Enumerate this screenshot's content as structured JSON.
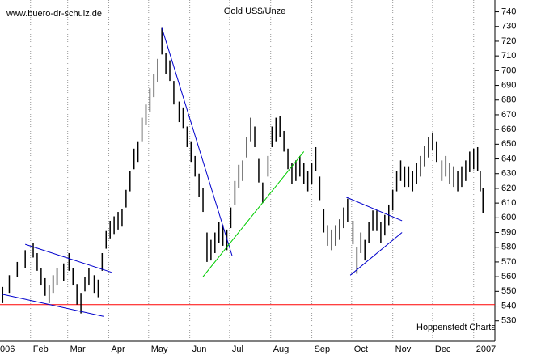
{
  "chart_data": {
    "type": "hilo",
    "title": "Gold US$/Unze",
    "watermark": "www.buero-dr-schulz.de",
    "source": "Hoppenstedt Charts",
    "color": "#000000",
    "series": [
      {
        "x": [
          11,
          16,
          22,
          28,
          34,
          37,
          40,
          43,
          46,
          49,
          52,
          57,
          61,
          64,
          67,
          70,
          73,
          76,
          80,
          83,
          86,
          89,
          92,
          95,
          98,
          101,
          104,
          107,
          110,
          113,
          116,
          119,
          122,
          125,
          128,
          131,
          134,
          137,
          140,
          144,
          147,
          150,
          153,
          156,
          159,
          162,
          165,
          168,
          171,
          174,
          177,
          180,
          183,
          186,
          189,
          192,
          195,
          198,
          201,
          204,
          207,
          211,
          214,
          217,
          220,
          223,
          226,
          229,
          232,
          235,
          238,
          241,
          244,
          247,
          250,
          253,
          256,
          259,
          262,
          265,
          268,
          271,
          275,
          278,
          281,
          284,
          287,
          290,
          293,
          296,
          299,
          302,
          305,
          308,
          311,
          314,
          317,
          320,
          323,
          326,
          329,
          332,
          335,
          338,
          342,
          345,
          348,
          351,
          354,
          357,
          360,
          363,
          366,
          369,
          371,
          373
        ],
        "high": [
          553,
          561,
          570,
          578,
          583,
          576,
          566,
          559,
          554,
          561,
          566,
          569,
          576,
          566,
          555,
          549,
          560,
          566,
          561,
          558,
          576,
          591,
          598,
          601,
          604,
          606,
          619,
          632,
          647,
          652,
          668,
          677,
          688,
          698,
          708,
          729,
          712,
          707,
          693,
          679,
          675,
          662,
          652,
          642,
          630,
          620,
          590,
          585,
          590,
          597,
          595,
          592,
          607,
          625,
          636,
          639,
          655,
          668,
          662,
          640,
          624,
          642,
          662,
          668,
          669,
          659,
          647,
          637,
          639,
          642,
          637,
          632,
          637,
          648,
          628,
          606,
          595,
          592,
          595,
          599,
          607,
          613,
          598,
          580,
          590,
          585,
          597,
          605,
          605,
          597,
          602,
          609,
          619,
          632,
          639,
          635,
          635,
          632,
          637,
          642,
          649,
          655,
          658,
          652,
          639,
          642,
          637,
          635,
          632,
          635,
          639,
          645,
          647,
          648,
          632,
          620
        ],
        "low": [
          542,
          549,
          560,
          566,
          573,
          564,
          554,
          547,
          542,
          549,
          554,
          557,
          564,
          554,
          541,
          535,
          550,
          554,
          549,
          546,
          564,
          579,
          586,
          589,
          592,
          594,
          607,
          618,
          633,
          638,
          652,
          663,
          672,
          682,
          692,
          711,
          698,
          693,
          677,
          665,
          661,
          648,
          638,
          628,
          614,
          604,
          570,
          571,
          576,
          583,
          581,
          578,
          593,
          609,
          620,
          625,
          641,
          652,
          648,
          624,
          610,
          628,
          648,
          652,
          655,
          645,
          633,
          623,
          625,
          628,
          623,
          618,
          623,
          632,
          612,
          590,
          581,
          578,
          581,
          585,
          593,
          597,
          582,
          562,
          576,
          571,
          583,
          591,
          591,
          583,
          588,
          595,
          605,
          618,
          625,
          621,
          621,
          618,
          623,
          628,
          635,
          641,
          646,
          638,
          625,
          628,
          623,
          621,
          618,
          621,
          625,
          631,
          633,
          632,
          618,
          603
        ]
      }
    ],
    "trendlines": [
      {
        "color": "#0000cc",
        "x": [
          28,
          93
        ],
        "y": [
          582,
          563
        ]
      },
      {
        "color": "#0000cc",
        "x": [
          11,
          87
        ],
        "y": [
          548,
          533
        ]
      },
      {
        "color": "#0000cc",
        "x": [
          131,
          184
        ],
        "y": [
          729,
          574
        ]
      },
      {
        "color": "#00cc00",
        "x": [
          162,
          238
        ],
        "y": [
          560,
          645
        ]
      },
      {
        "color": "#0000cc",
        "x": [
          270,
          312
        ],
        "y": [
          614,
          598
        ]
      },
      {
        "color": "#0000cc",
        "x": [
          273,
          312
        ],
        "y": [
          561,
          590
        ]
      }
    ],
    "hline": {
      "value": 541,
      "color": "#ff0000"
    },
    "xlim": [
      9,
      382
    ],
    "ylim": [
      526,
      748
    ],
    "xticks": [
      {
        "value": 1,
        "label": "006"
      },
      {
        "value": 32,
        "label": "Feb"
      },
      {
        "value": 60,
        "label": "Mar"
      },
      {
        "value": 91,
        "label": "Apr"
      },
      {
        "value": 121,
        "label": "May"
      },
      {
        "value": 152,
        "label": "Jun"
      },
      {
        "value": 182,
        "label": "Jul"
      },
      {
        "value": 213,
        "label": "Aug"
      },
      {
        "value": 244,
        "label": "Sep"
      },
      {
        "value": 274,
        "label": "Oct"
      },
      {
        "value": 305,
        "label": "Nov"
      },
      {
        "value": 335,
        "label": "Dec"
      },
      {
        "value": 366,
        "label": "2007"
      }
    ],
    "yticks": [
      530,
      540,
      550,
      560,
      570,
      580,
      590,
      600,
      610,
      620,
      630,
      640,
      650,
      660,
      670,
      680,
      690,
      700,
      710,
      720,
      730,
      740
    ],
    "xgrid": true
  }
}
